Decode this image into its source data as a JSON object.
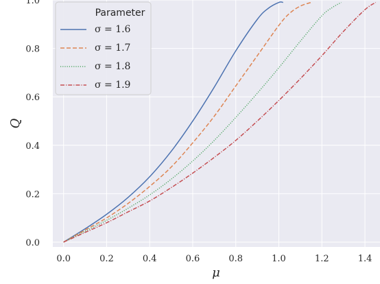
{
  "chart_data": {
    "type": "line",
    "title": "",
    "xlabel": "μ",
    "ylabel": "Q",
    "xlim": [
      -0.05,
      1.47
    ],
    "ylim": [
      -0.02,
      1.0
    ],
    "xticks": [
      0.0,
      0.2,
      0.4,
      0.6,
      0.8,
      1.0,
      1.2,
      1.4
    ],
    "yticks": [
      0.0,
      0.2,
      0.4,
      0.6,
      0.8,
      1.0
    ],
    "xtick_labels": [
      "0.0",
      "0.2",
      "0.4",
      "0.6",
      "0.8",
      "1.0",
      "1.2",
      "1.4"
    ],
    "ytick_labels": [
      "0.0",
      "0.2",
      "0.4",
      "0.6",
      "0.8",
      "1.0"
    ],
    "grid": true,
    "background": "#eaeaf2",
    "legend": {
      "title": "Parameter",
      "position": "top-left"
    },
    "series": [
      {
        "name": "σ = 1.6",
        "color": "#4c72b0",
        "dash": "solid",
        "x": [
          0.0,
          0.1,
          0.2,
          0.3,
          0.4,
          0.5,
          0.6,
          0.7,
          0.8,
          0.9,
          0.95,
          1.0,
          1.02
        ],
        "y": [
          0.0,
          0.055,
          0.115,
          0.185,
          0.27,
          0.375,
          0.5,
          0.64,
          0.79,
          0.92,
          0.965,
          0.99,
          0.99
        ]
      },
      {
        "name": "σ = 1.7",
        "color": "#dd8452",
        "dash": "dashed",
        "x": [
          0.0,
          0.1,
          0.2,
          0.3,
          0.4,
          0.5,
          0.6,
          0.7,
          0.8,
          0.9,
          1.0,
          1.05,
          1.1,
          1.15
        ],
        "y": [
          0.0,
          0.05,
          0.1,
          0.16,
          0.23,
          0.31,
          0.41,
          0.52,
          0.645,
          0.77,
          0.895,
          0.945,
          0.975,
          0.99
        ]
      },
      {
        "name": "σ = 1.8",
        "color": "#55a868",
        "dash": "dotted",
        "x": [
          0.0,
          0.1,
          0.2,
          0.3,
          0.4,
          0.5,
          0.6,
          0.7,
          0.8,
          0.9,
          1.0,
          1.1,
          1.2,
          1.25,
          1.29
        ],
        "y": [
          0.0,
          0.045,
          0.09,
          0.14,
          0.195,
          0.26,
          0.335,
          0.42,
          0.515,
          0.615,
          0.72,
          0.83,
          0.935,
          0.97,
          0.99
        ]
      },
      {
        "name": "σ = 1.9",
        "color": "#c44e52",
        "dash": "dashdot",
        "x": [
          0.0,
          0.1,
          0.2,
          0.3,
          0.4,
          0.5,
          0.6,
          0.7,
          0.8,
          0.9,
          1.0,
          1.1,
          1.2,
          1.3,
          1.4,
          1.45
        ],
        "y": [
          0.0,
          0.04,
          0.08,
          0.125,
          0.17,
          0.225,
          0.285,
          0.35,
          0.42,
          0.5,
          0.585,
          0.675,
          0.77,
          0.87,
          0.96,
          0.99
        ]
      }
    ]
  }
}
